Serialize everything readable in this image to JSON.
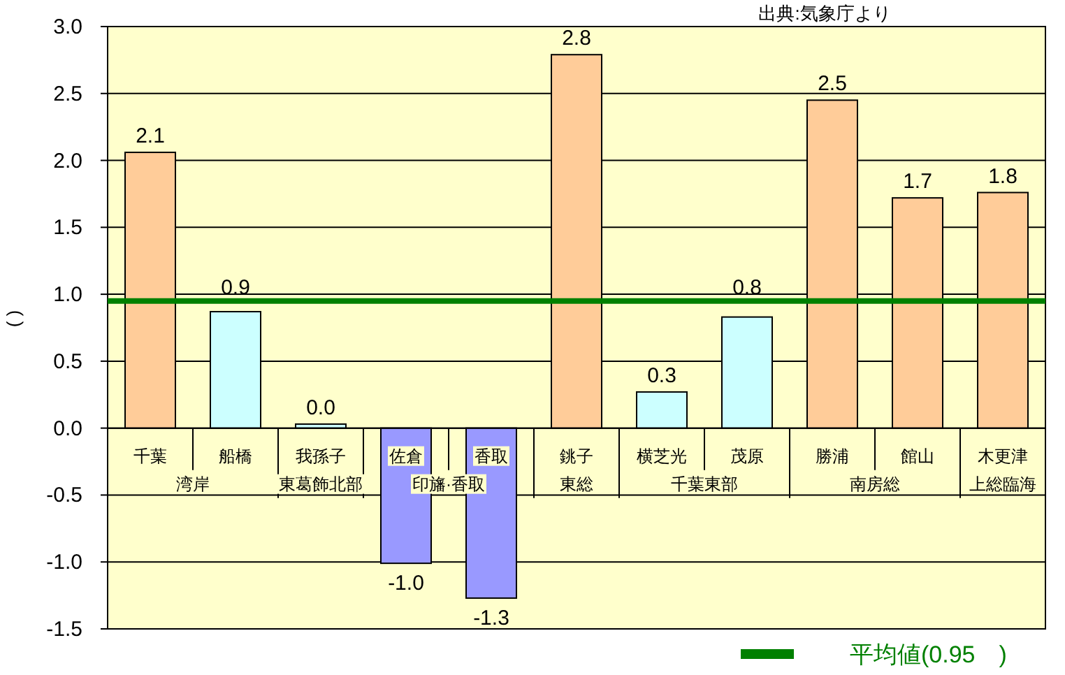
{
  "chart_data": {
    "type": "bar",
    "ylabel": "( )",
    "categories": [
      "千葉",
      "船橋",
      "我孫子",
      "佐倉",
      "香取",
      "銚子",
      "横芝光",
      "茂原",
      "勝浦",
      "館山",
      "木更津"
    ],
    "values": [
      2.06,
      0.87,
      0.03,
      -1.01,
      -1.27,
      2.79,
      0.27,
      0.83,
      2.45,
      1.72,
      1.76
    ],
    "value_labels": [
      "2.1",
      "0.9",
      "0.0",
      "-1.0",
      "-1.3",
      "2.8",
      "0.3",
      "0.8",
      "2.5",
      "1.7",
      "1.8"
    ],
    "colors": [
      "#ffcc99",
      "#ccffff",
      "#ccffff",
      "#9999ff",
      "#9999ff",
      "#ffcc99",
      "#ccffff",
      "#ccffff",
      "#ffcc99",
      "#ffcc99",
      "#ffcc99"
    ],
    "ylim": [
      -1.5,
      3.0
    ],
    "yticks": [
      {
        "value": -1.5,
        "label": "-1.5"
      },
      {
        "value": -1.0,
        "label": "-1.0"
      },
      {
        "value": -0.5,
        "label": "-0.5"
      },
      {
        "value": 0,
        "label": "0.0"
      },
      {
        "value": 0.5,
        "label": "0.5"
      },
      {
        "value": 1.0,
        "label": "1.0"
      },
      {
        "value": 1.5,
        "label": "1.5"
      },
      {
        "value": 2.0,
        "label": "2.0"
      },
      {
        "value": 2.5,
        "label": "2.5"
      },
      {
        "value": 3.0,
        "label": "3.0"
      }
    ],
    "grid": "y",
    "legend": "bottom right",
    "ref_lines": [
      {
        "axis": "y",
        "value": 0.95,
        "label": "平均値(0.95　)",
        "color": "#008000"
      }
    ],
    "annotations": [
      "湾岸",
      "東葛飾北部",
      "印旛·香取",
      "東総",
      "千葉東部",
      "南房総",
      "上総臨海",
      "出典:気象庁より"
    ]
  }
}
